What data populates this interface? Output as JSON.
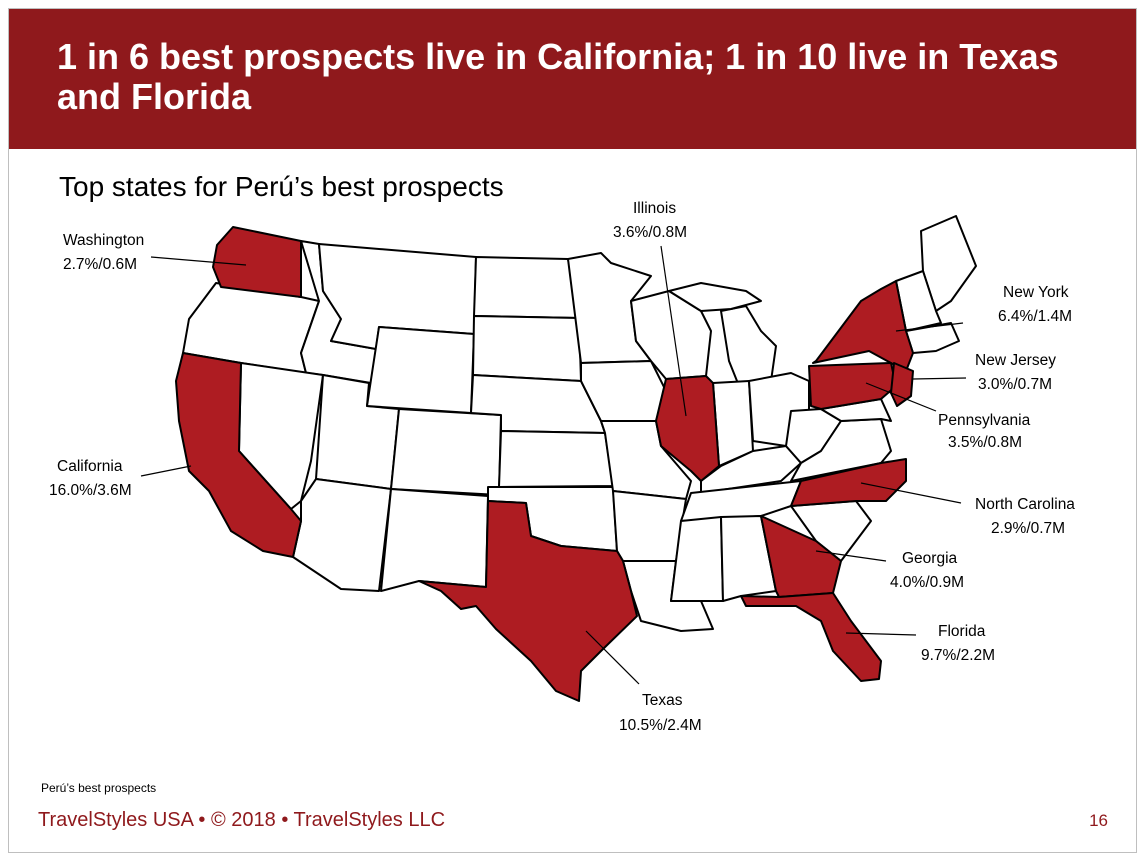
{
  "title": "1 in 6 best prospects live in California; 1 in 10 live in Texas and Florida",
  "subtitle": "Top states for Perú’s best prospects",
  "colors": {
    "brand": "#8f191c",
    "highlight": "#ae1c22"
  },
  "states": [
    {
      "name": "Washington",
      "value": "2.7%/0.6M",
      "pct": 2.7,
      "millions": 0.6
    },
    {
      "name": "Illinois",
      "value": "3.6%/0.8M",
      "pct": 3.6,
      "millions": 0.8
    },
    {
      "name": "California",
      "value": "16.0%/3.6M",
      "pct": 16.0,
      "millions": 3.6
    },
    {
      "name": "New York",
      "value": "6.4%/1.4M",
      "pct": 6.4,
      "millions": 1.4
    },
    {
      "name": "New Jersey",
      "value": "3.0%/0.7M",
      "pct": 3.0,
      "millions": 0.7
    },
    {
      "name": "Pennsylvania",
      "value": "3.5%/0.8M",
      "pct": 3.5,
      "millions": 0.8
    },
    {
      "name": "North Carolina",
      "value": "2.9%/0.7M",
      "pct": 2.9,
      "millions": 0.7
    },
    {
      "name": "Georgia",
      "value": "4.0%/0.9M",
      "pct": 4.0,
      "millions": 0.9
    },
    {
      "name": "Florida",
      "value": "9.7%/2.2M",
      "pct": 9.7,
      "millions": 2.2
    },
    {
      "name": "Texas",
      "value": "10.5%/2.4M",
      "pct": 10.5,
      "millions": 2.4
    }
  ],
  "footnote": "Perú’s best prospects",
  "footer": "TravelStyles USA • © 2018 • TravelStyles LLC",
  "page_number": "16"
}
